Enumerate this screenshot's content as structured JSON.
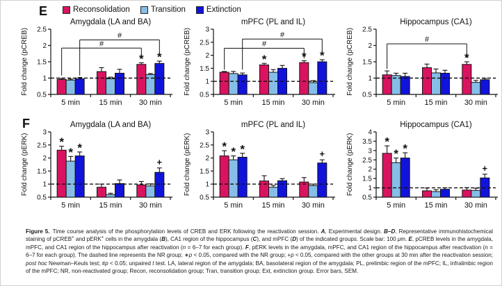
{
  "figure": {
    "panel_e_label": "E",
    "panel_f_label": "F",
    "legend": {
      "items": [
        {
          "label": "Reconsolidation",
          "color": "#DA1360"
        },
        {
          "label": "Transition",
          "color": "#86BEE8"
        },
        {
          "label": "Extinction",
          "color": "#1113DB"
        }
      ]
    },
    "bar_border_color": "#141414",
    "caption": [
      {
        "t": "Figure 5.",
        "b": true
      },
      {
        "t": " Time course analysis of the phosphorylation levels of CREB and ERK following the reactivation session. "
      },
      {
        "t": "A",
        "b": true,
        "i": true
      },
      {
        "t": ", Experimental design. "
      },
      {
        "t": "B–D",
        "b": true,
        "i": true
      },
      {
        "t": ", Representative immunohistochemical staining of pCREB"
      },
      {
        "t": "+",
        "sup": true
      },
      {
        "t": " and pERK"
      },
      {
        "t": "+",
        "sup": true
      },
      {
        "t": " cells in the amygdala ("
      },
      {
        "t": "B",
        "b": true,
        "i": true
      },
      {
        "t": "), CA1 region of the hippocampus ("
      },
      {
        "t": "C",
        "b": true,
        "i": true
      },
      {
        "t": "), and mPFC ("
      },
      {
        "t": "D",
        "b": true,
        "i": true
      },
      {
        "t": ") of the indicated groups. Scale bar: 100 "
      },
      {
        "t": "μ",
        "i": true
      },
      {
        "t": "m. "
      },
      {
        "t": "E",
        "b": true,
        "i": true
      },
      {
        "t": ", pCREB levels in the amygdala, mPFC, and CA1 region of the hippocampus after reactivation ("
      },
      {
        "t": "n",
        "i": true
      },
      {
        "t": " = 6–7 for each group). "
      },
      {
        "t": "F",
        "b": true,
        "i": true
      },
      {
        "t": ", pERK levels in the amygdala, mPFC, and CA1 region of the hippocampus after reactivation ("
      },
      {
        "t": "n",
        "i": true
      },
      {
        "t": " = 6–7 for each group). The dashed line represents the NR group; ∗"
      },
      {
        "t": "p",
        "i": true
      },
      {
        "t": " < 0.05, compared with the NR group; +"
      },
      {
        "t": "p",
        "i": true
      },
      {
        "t": " < 0.05, compared with the other groups at 30 min after the reactivation session; "
      },
      {
        "t": "post hoc",
        "i": true
      },
      {
        "t": " Newman–Keuls test; #"
      },
      {
        "t": "p",
        "i": true
      },
      {
        "t": " < 0.05; unpaired "
      },
      {
        "t": "t",
        "i": true
      },
      {
        "t": " test. LA, lateral region of the amygdala; BA, basolateral region of the amygdala; PL, prelimbic region of the mPFC; IL, infralimbic region of the mPFC; NR, non-reactivated group; Recon, reconsolidation group; Tran, transition group; Ext, extinction group. Error bars, SEM."
      }
    ]
  },
  "chart_data": [
    {
      "id": "e-amygdala",
      "panel": "E",
      "type": "bar",
      "title": "Amygdala (LA and BA)",
      "ylabel": "Fold change (pCREB)",
      "ylim": [
        0.5,
        2.5
      ],
      "ytick_step": 0.5,
      "baseline": 1.0,
      "categories": [
        "5 min",
        "15 min",
        "30 min"
      ],
      "series": [
        {
          "name": "Reconsolidation",
          "values": [
            0.96,
            1.2,
            1.42
          ],
          "errors": [
            0.03,
            0.12,
            0.05
          ]
        },
        {
          "name": "Transition",
          "values": [
            0.94,
            0.98,
            1.11
          ],
          "errors": [
            0.03,
            0.05,
            0.03
          ]
        },
        {
          "name": "Extinction",
          "values": [
            0.98,
            1.15,
            1.45
          ],
          "errors": [
            0.04,
            0.12,
            0.07
          ]
        }
      ],
      "annotations": [
        {
          "symbol": "*",
          "cat": 2,
          "ser": 0
        },
        {
          "symbol": "*",
          "cat": 2,
          "ser": 2
        }
      ],
      "brackets": [
        {
          "label": "#",
          "x1_cat": 0,
          "x1_ser": 0,
          "x2_cat": 2,
          "x2_ser": 0,
          "y": 1.92,
          "y1_end": 1.08,
          "y2_end": 1.6
        },
        {
          "label": "#",
          "x1_cat": 0,
          "x1_ser": 2,
          "x2_cat": 2,
          "x2_ser": 2,
          "y": 2.17,
          "y1_end": 1.08,
          "y2_end": 1.76
        }
      ]
    },
    {
      "id": "e-mpfc",
      "panel": "E",
      "type": "bar",
      "title": "mPFC (PL and IL)",
      "ylabel": "Fold change (pCREB)",
      "ylim": [
        0.5,
        3.0
      ],
      "ytick_step": 0.5,
      "baseline": 1.0,
      "categories": [
        "5 min",
        "15 min",
        "30 min"
      ],
      "series": [
        {
          "name": "Reconsolidation",
          "values": [
            1.35,
            1.63,
            1.72
          ],
          "errors": [
            0.03,
            0.06,
            0.07
          ]
        },
        {
          "name": "Transition",
          "values": [
            1.3,
            1.35,
            0.95
          ],
          "errors": [
            0.08,
            0.1,
            0.08
          ]
        },
        {
          "name": "Extinction",
          "values": [
            1.25,
            1.5,
            1.75
          ],
          "errors": [
            0.07,
            0.11,
            0.08
          ]
        }
      ],
      "annotations": [
        {
          "symbol": "*",
          "cat": 1,
          "ser": 0
        },
        {
          "symbol": "*",
          "cat": 2,
          "ser": 0
        },
        {
          "symbol": "*",
          "cat": 2,
          "ser": 2
        }
      ],
      "brackets": [
        {
          "label": "#",
          "x1_cat": 0,
          "x1_ser": 0,
          "x2_cat": 2,
          "x2_ser": 0,
          "y": 2.27,
          "y1_end": 1.45,
          "y2_end": 1.88
        },
        {
          "label": "#",
          "x1_cat": 0,
          "x1_ser": 2,
          "x2_cat": 2,
          "x2_ser": 2,
          "y": 2.62,
          "y1_end": 1.45,
          "y2_end": 2.12
        }
      ]
    },
    {
      "id": "e-hippocampus",
      "panel": "E",
      "type": "bar",
      "title": "Hippocampus (CA1)",
      "ylabel": "Fold change (pCREB)",
      "ylim": [
        0.5,
        2.5
      ],
      "ytick_step": 0.5,
      "baseline": 1.0,
      "categories": [
        "5 min",
        "15 min",
        "30 min"
      ],
      "series": [
        {
          "name": "Reconsolidation",
          "values": [
            1.1,
            1.32,
            1.42
          ],
          "errors": [
            0.12,
            0.11,
            0.08
          ]
        },
        {
          "name": "Transition",
          "values": [
            1.08,
            1.16,
            0.87
          ],
          "errors": [
            0.07,
            0.12,
            0.06
          ]
        },
        {
          "name": "Extinction",
          "values": [
            1.05,
            1.15,
            0.95
          ],
          "errors": [
            0.1,
            0.09,
            0.04
          ]
        }
      ],
      "annotations": [
        {
          "symbol": "*",
          "cat": 2,
          "ser": 0
        }
      ],
      "brackets": [
        {
          "label": "#",
          "x1_cat": 0,
          "x1_ser": 0,
          "x2_cat": 2,
          "x2_ser": 0,
          "y": 2.05,
          "y1_end": 1.28,
          "y2_end": 1.62
        }
      ]
    },
    {
      "id": "f-amygdala",
      "panel": "F",
      "type": "bar",
      "title": "Amygdala (LA and BA)",
      "ylabel": "Fold change (pERK)",
      "ylim": [
        0.5,
        3.0
      ],
      "ytick_step": 0.5,
      "baseline": 1.0,
      "categories": [
        "5 min",
        "15 min",
        "30 min"
      ],
      "series": [
        {
          "name": "Reconsolidation",
          "values": [
            2.3,
            0.88,
            0.97
          ],
          "errors": [
            0.15,
            0.12,
            0.13
          ]
        },
        {
          "name": "Transition",
          "values": [
            1.88,
            0.6,
            0.93
          ],
          "errors": [
            0.18,
            0.05,
            0.08
          ]
        },
        {
          "name": "Extinction",
          "values": [
            2.08,
            1.02,
            1.45
          ],
          "errors": [
            0.15,
            0.14,
            0.17
          ]
        }
      ],
      "annotations": [
        {
          "symbol": "*",
          "cat": 0,
          "ser": 0
        },
        {
          "symbol": "*",
          "cat": 0,
          "ser": 1
        },
        {
          "symbol": "*",
          "cat": 0,
          "ser": 2
        },
        {
          "symbol": "+",
          "cat": 2,
          "ser": 2
        }
      ],
      "brackets": []
    },
    {
      "id": "f-mpfc",
      "panel": "F",
      "type": "bar",
      "title": "mPFC (PL and IL)",
      "ylabel": "Fold change (pERK)",
      "ylim": [
        0.5,
        3.0
      ],
      "ytick_step": 0.5,
      "baseline": 1.0,
      "categories": [
        "5 min",
        "15 min",
        "30 min"
      ],
      "series": [
        {
          "name": "Reconsolidation",
          "values": [
            2.08,
            1.12,
            1.08
          ],
          "errors": [
            0.2,
            0.2,
            0.17
          ]
        },
        {
          "name": "Transition",
          "values": [
            1.93,
            0.88,
            0.94
          ],
          "errors": [
            0.15,
            0.07,
            0.06
          ]
        },
        {
          "name": "Extinction",
          "values": [
            2.03,
            1.13,
            1.81
          ],
          "errors": [
            0.15,
            0.08,
            0.12
          ]
        }
      ],
      "annotations": [
        {
          "symbol": "*",
          "cat": 0,
          "ser": 0
        },
        {
          "symbol": "*",
          "cat": 0,
          "ser": 1
        },
        {
          "symbol": "*",
          "cat": 0,
          "ser": 2
        },
        {
          "symbol": "+",
          "cat": 2,
          "ser": 2
        }
      ],
      "brackets": []
    },
    {
      "id": "f-hippocampus",
      "panel": "F",
      "type": "bar",
      "title": "Hippocampus (CA1)",
      "ylabel": "Fold change (pERK)",
      "ylim": [
        0.5,
        4.0
      ],
      "ytick_step": 0.5,
      "baseline": 1.0,
      "categories": [
        "5 min",
        "15 min",
        "30 min"
      ],
      "series": [
        {
          "name": "Reconsolidation",
          "values": [
            2.85,
            0.84,
            0.88
          ],
          "errors": [
            0.4,
            0.15,
            0.13
          ]
        },
        {
          "name": "Transition",
          "values": [
            2.35,
            0.8,
            0.86
          ],
          "errors": [
            0.25,
            0.1,
            0.12
          ]
        },
        {
          "name": "Extinction",
          "values": [
            2.6,
            0.92,
            1.53
          ],
          "errors": [
            0.28,
            0.08,
            0.2
          ]
        }
      ],
      "annotations": [
        {
          "symbol": "*",
          "cat": 0,
          "ser": 0
        },
        {
          "symbol": "*",
          "cat": 0,
          "ser": 1
        },
        {
          "symbol": "*",
          "cat": 0,
          "ser": 2
        },
        {
          "symbol": "+",
          "cat": 2,
          "ser": 2
        }
      ],
      "brackets": []
    }
  ]
}
